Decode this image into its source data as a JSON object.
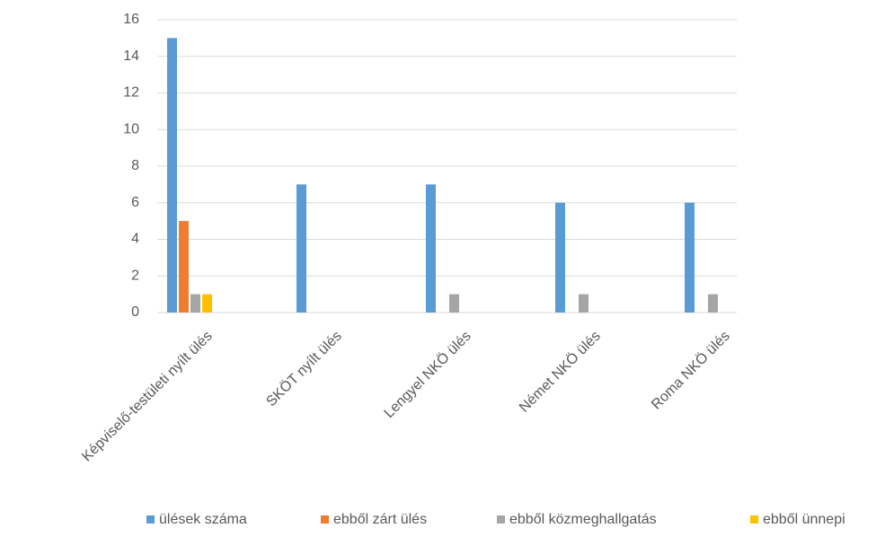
{
  "chart_data": {
    "type": "bar",
    "categories": [
      "Képviselő-testületi nyílt ülés",
      "SKÖT nyílt ülés",
      "Lengyel NKÖ ülés",
      "Német NKÖ ülés",
      "Roma NKÖ ülés"
    ],
    "series": [
      {
        "name": "ülések száma",
        "color": "#5b9bd5",
        "values": [
          15,
          7,
          7,
          6,
          6
        ]
      },
      {
        "name": "ebből zárt ülés",
        "color": "#ed7d31",
        "values": [
          5,
          0,
          0,
          0,
          0
        ]
      },
      {
        "name": "ebből közmeghallgatás",
        "color": "#a5a5a5",
        "values": [
          1,
          0,
          1,
          1,
          1
        ]
      },
      {
        "name": "ebből ünnepi",
        "color": "#ffc000",
        "values": [
          1,
          0,
          0,
          0,
          0
        ]
      }
    ],
    "ylim": [
      0,
      16
    ],
    "yticks": [
      0,
      2,
      4,
      6,
      8,
      10,
      12,
      14,
      16
    ],
    "grid": true,
    "legend": "bottom"
  }
}
